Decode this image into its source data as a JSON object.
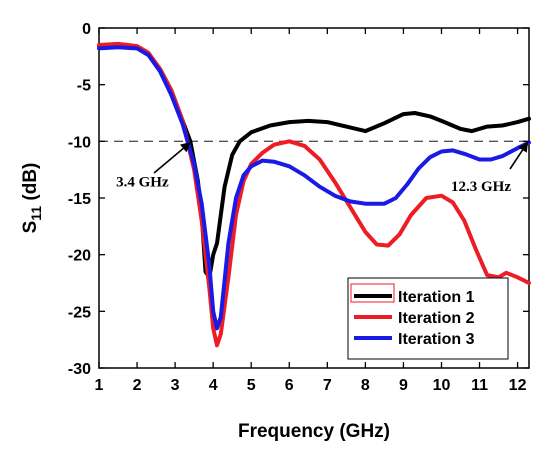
{
  "chart_data": {
    "type": "line",
    "xlabel": "Frequency (GHz)",
    "ylabel_main": "S",
    "ylabel_sub": "11",
    "ylabel_unit": " (dB)",
    "xlim": [
      1,
      12.3
    ],
    "ylim": [
      -30,
      0
    ],
    "xticks": [
      "1",
      "2",
      "3",
      "4",
      "5",
      "6",
      "7",
      "8",
      "9",
      "10",
      "11",
      "12"
    ],
    "yticks": [
      "0",
      "-5",
      "-10",
      "-15",
      "-20",
      "-25",
      "-30"
    ],
    "reference_line": {
      "y": -10,
      "style": "dashed",
      "color": "#555555"
    },
    "legend_position": "bottom-right",
    "series": [
      {
        "name": "Iteration 1",
        "color": "#000000",
        "x": [
          1.0,
          1.5,
          2.0,
          2.3,
          2.6,
          2.9,
          3.2,
          3.4,
          3.6,
          3.7,
          3.8,
          3.9,
          4.0,
          4.1,
          4.3,
          4.5,
          4.7,
          5.0,
          5.5,
          6.0,
          6.5,
          7.0,
          7.5,
          8.0,
          8.5,
          9.0,
          9.3,
          9.7,
          10.0,
          10.5,
          10.8,
          11.2,
          11.6,
          12.0,
          12.3
        ],
        "y": [
          -1.6,
          -1.5,
          -1.7,
          -2.3,
          -3.6,
          -5.5,
          -8.2,
          -10.0,
          -13.5,
          -16.5,
          -21.5,
          -22.0,
          -20.0,
          -19.0,
          -14.0,
          -11.2,
          -10.0,
          -9.2,
          -8.6,
          -8.3,
          -8.2,
          -8.3,
          -8.7,
          -9.1,
          -8.4,
          -7.6,
          -7.5,
          -7.8,
          -8.2,
          -8.9,
          -9.1,
          -8.7,
          -8.6,
          -8.3,
          -8.0
        ]
      },
      {
        "name": "Iteration 2",
        "color": "#ee1c24",
        "x": [
          1.0,
          1.5,
          2.0,
          2.3,
          2.6,
          2.9,
          3.2,
          3.5,
          3.7,
          3.9,
          4.0,
          4.1,
          4.2,
          4.4,
          4.6,
          4.8,
          5.0,
          5.3,
          5.6,
          6.0,
          6.4,
          6.8,
          7.2,
          7.6,
          8.0,
          8.3,
          8.6,
          8.9,
          9.2,
          9.6,
          10.0,
          10.3,
          10.6,
          10.9,
          11.2,
          11.5,
          11.7,
          12.0,
          12.3
        ],
        "y": [
          -1.5,
          -1.4,
          -1.6,
          -2.2,
          -3.6,
          -5.5,
          -8.2,
          -12.5,
          -17.0,
          -23.0,
          -26.5,
          -28.0,
          -27.0,
          -22.0,
          -16.5,
          -13.5,
          -12.0,
          -11.0,
          -10.3,
          -10.0,
          -10.4,
          -11.6,
          -13.6,
          -15.8,
          -18.0,
          -19.1,
          -19.2,
          -18.2,
          -16.5,
          -15.0,
          -14.8,
          -15.4,
          -17.0,
          -19.5,
          -21.8,
          -22.0,
          -21.6,
          -22.0,
          -22.5
        ]
      },
      {
        "name": "Iteration 3",
        "color": "#1a1ae6",
        "x": [
          1.0,
          1.5,
          2.0,
          2.3,
          2.6,
          2.9,
          3.2,
          3.5,
          3.7,
          3.9,
          4.0,
          4.1,
          4.2,
          4.4,
          4.6,
          4.8,
          5.0,
          5.3,
          5.6,
          6.0,
          6.4,
          6.8,
          7.2,
          7.6,
          8.0,
          8.5,
          8.8,
          9.1,
          9.4,
          9.7,
          10.0,
          10.3,
          10.6,
          11.0,
          11.3,
          11.6,
          12.0,
          12.3
        ],
        "y": [
          -1.8,
          -1.7,
          -1.8,
          -2.4,
          -3.8,
          -5.9,
          -8.5,
          -12.0,
          -15.5,
          -21.0,
          -25.0,
          -26.5,
          -25.5,
          -19.0,
          -15.0,
          -13.0,
          -12.2,
          -11.7,
          -11.8,
          -12.2,
          -13.0,
          -14.0,
          -14.8,
          -15.3,
          -15.5,
          -15.5,
          -15.0,
          -13.8,
          -12.4,
          -11.4,
          -10.9,
          -10.8,
          -11.1,
          -11.6,
          -11.6,
          -11.3,
          -10.6,
          -10.1
        ]
      }
    ],
    "annotations": [
      {
        "text": "3.4 GHz",
        "x": 3.4,
        "y": -10,
        "label_x": 1.45,
        "label_y": -14.0
      },
      {
        "text": "12.3 GHz",
        "x": 12.3,
        "y": -10,
        "label_x": 10.25,
        "label_y": -14.4
      }
    ]
  }
}
